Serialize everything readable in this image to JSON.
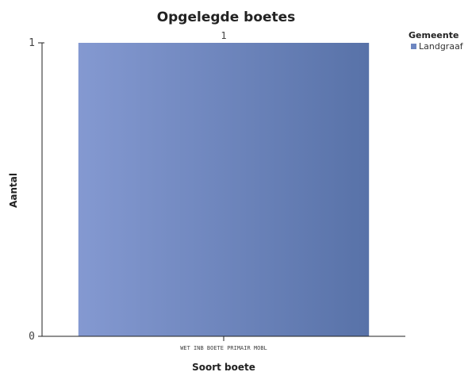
{
  "chart_data": {
    "type": "bar",
    "title": "Opgelegde boetes",
    "xlabel": "Soort boete",
    "ylabel": "Aantal",
    "categories": [
      "WET INB BOETE PRIMAIR MOBL"
    ],
    "series": [
      {
        "name": "Landgraaf",
        "values": [
          1
        ],
        "color": "#6d86c1"
      }
    ],
    "ylim": [
      0,
      1
    ],
    "yticks": [
      "0",
      "1"
    ],
    "data_labels": [
      "1"
    ],
    "legend": {
      "title": "Gemeente",
      "position": "top-right"
    },
    "grid": false,
    "colors": {
      "bar_start": "#8499d1",
      "bar_end": "#5872a8",
      "legend_swatch": "#6d86c1",
      "axis": "#222222",
      "baseline": "#cccccc"
    }
  }
}
